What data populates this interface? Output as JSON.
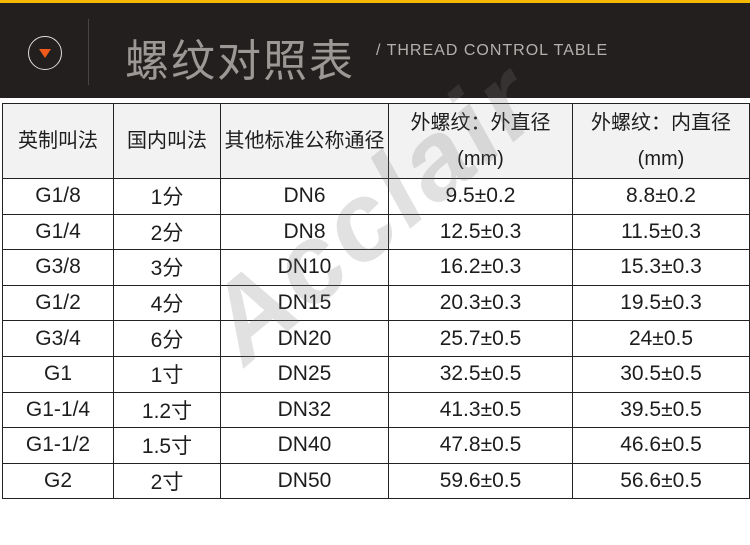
{
  "header": {
    "title": "螺纹对照表",
    "subtitle": "/ THREAD CONTROL TABLE",
    "icon": "chevron-down-circle-icon",
    "accent_color": "#f25a1c",
    "top_line_color": "#f5b800",
    "background": "#231f1e"
  },
  "table": {
    "columns": [
      "英制叫法",
      "国内叫法",
      "其他标准公称通径",
      "外螺纹：外直径(mm)",
      "外螺纹：内直径(mm)"
    ],
    "rows": [
      [
        "G1/8",
        "1分",
        "DN6",
        "9.5±0.2",
        "8.8±0.2"
      ],
      [
        "G1/4",
        "2分",
        "DN8",
        "12.5±0.3",
        "11.5±0.3"
      ],
      [
        "G3/8",
        "3分",
        "DN10",
        "16.2±0.3",
        "15.3±0.3"
      ],
      [
        "G1/2",
        "4分",
        "DN15",
        "20.3±0.3",
        "19.5±0.3"
      ],
      [
        "G3/4",
        "6分",
        "DN20",
        "25.7±0.5",
        "24±0.5"
      ],
      [
        "G1",
        "1寸",
        "DN25",
        "32.5±0.5",
        "30.5±0.5"
      ],
      [
        "G1-1/4",
        "1.2寸",
        "DN32",
        "41.3±0.5",
        "39.5±0.5"
      ],
      [
        "G1-1/2",
        "1.5寸",
        "DN40",
        "47.8±0.5",
        "46.6±0.5"
      ],
      [
        "G2",
        "2寸",
        "DN50",
        "59.6±0.5",
        "56.6±0.5"
      ]
    ]
  },
  "watermark_text": "Acclair"
}
